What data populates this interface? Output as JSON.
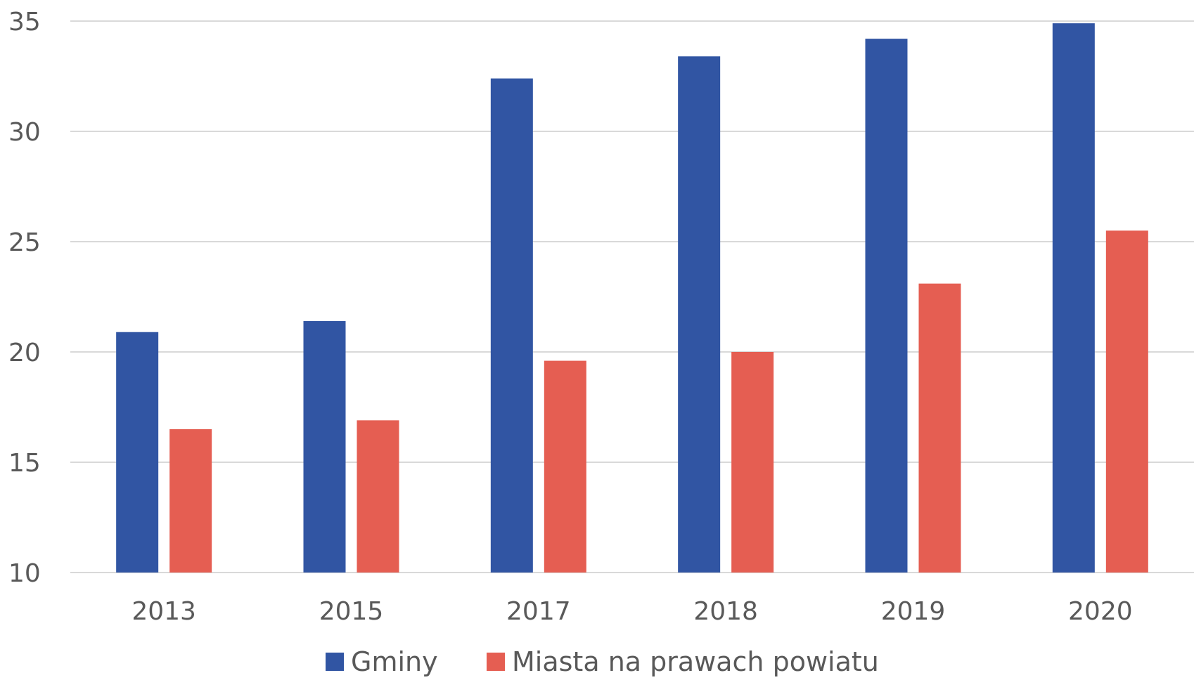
{
  "chart_data": {
    "type": "bar",
    "categories": [
      "2013",
      "2015",
      "2017",
      "2018",
      "2019",
      "2020"
    ],
    "series": [
      {
        "name": "Gminy",
        "values": [
          20.9,
          21.4,
          32.4,
          33.4,
          34.2,
          34.9
        ],
        "color": "#3155A3"
      },
      {
        "name": "Miasta na prawach powiatu",
        "values": [
          16.5,
          16.9,
          19.6,
          20.0,
          23.1,
          25.5
        ],
        "color": "#E55E52"
      }
    ],
    "title": "",
    "xlabel": "",
    "ylabel": "",
    "ylim": [
      10,
      35
    ],
    "yticks": [
      "10",
      "15",
      "20",
      "25",
      "30",
      "35"
    ],
    "grid": true,
    "legend_position": "bottom"
  }
}
